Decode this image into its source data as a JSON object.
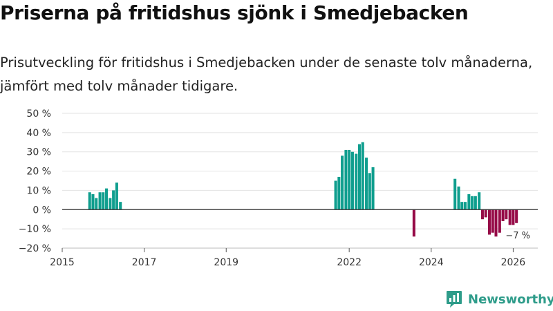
{
  "title": "Priserna på fritidshus sjönk i Smedjebacken",
  "subtitle": "Prisutveckling för fritidshus i Smedjebacken under de senaste tolv månaderna, jämfört med tolv månader tidigare.",
  "logo": {
    "text": "Newsworthy",
    "icon": "bar-chart-logo-icon"
  },
  "colors": {
    "positive": "#0f9e8e",
    "negative": "#960b47",
    "grid": "#e2e2e2",
    "zero": "#333333",
    "brand": "#2e9c8a"
  },
  "chart_data": {
    "type": "bar",
    "title": "Priserna på fritidshus sjönk i Smedjebacken",
    "xlabel": "",
    "ylabel": "",
    "ylim": [
      -20,
      50
    ],
    "yticks": [
      50,
      40,
      30,
      20,
      10,
      0,
      -10,
      -20
    ],
    "ytick_labels": [
      "50 %",
      "40 %",
      "30 %",
      "20 %",
      "10 %",
      "0 %",
      "−10 %",
      "−20 %"
    ],
    "xlim": [
      2015.0,
      2026.6
    ],
    "xticks": [
      2015,
      2017,
      2019,
      2022,
      2024,
      2026
    ],
    "xtick_labels": [
      "2015",
      "2017",
      "2019",
      "2022",
      "2024",
      "2026"
    ],
    "grid": true,
    "end_label": "−7 %",
    "series": [
      {
        "name": "Prisutveckling",
        "points": [
          {
            "x": 2015.67,
            "y": 9
          },
          {
            "x": 2015.75,
            "y": 8
          },
          {
            "x": 2015.83,
            "y": 6
          },
          {
            "x": 2015.92,
            "y": 9
          },
          {
            "x": 2016.0,
            "y": 9
          },
          {
            "x": 2016.08,
            "y": 11
          },
          {
            "x": 2016.17,
            "y": 6
          },
          {
            "x": 2016.25,
            "y": 10
          },
          {
            "x": 2016.33,
            "y": 14
          },
          {
            "x": 2016.42,
            "y": 4
          },
          {
            "x": 2021.67,
            "y": 15
          },
          {
            "x": 2021.75,
            "y": 17
          },
          {
            "x": 2021.83,
            "y": 28
          },
          {
            "x": 2021.92,
            "y": 31
          },
          {
            "x": 2022.0,
            "y": 31
          },
          {
            "x": 2022.08,
            "y": 30
          },
          {
            "x": 2022.17,
            "y": 29
          },
          {
            "x": 2022.25,
            "y": 34
          },
          {
            "x": 2022.33,
            "y": 35
          },
          {
            "x": 2022.42,
            "y": 27
          },
          {
            "x": 2022.5,
            "y": 19
          },
          {
            "x": 2022.58,
            "y": 22
          },
          {
            "x": 2023.58,
            "y": -14
          },
          {
            "x": 2024.58,
            "y": 16
          },
          {
            "x": 2024.67,
            "y": 12
          },
          {
            "x": 2024.75,
            "y": 4
          },
          {
            "x": 2024.83,
            "y": 4
          },
          {
            "x": 2024.92,
            "y": 8
          },
          {
            "x": 2025.0,
            "y": 7
          },
          {
            "x": 2025.08,
            "y": 7
          },
          {
            "x": 2025.17,
            "y": 9
          },
          {
            "x": 2025.25,
            "y": -5
          },
          {
            "x": 2025.33,
            "y": -4
          },
          {
            "x": 2025.42,
            "y": -13
          },
          {
            "x": 2025.5,
            "y": -12
          },
          {
            "x": 2025.58,
            "y": -14
          },
          {
            "x": 2025.67,
            "y": -12
          },
          {
            "x": 2025.75,
            "y": -6
          },
          {
            "x": 2025.83,
            "y": -5
          },
          {
            "x": 2025.92,
            "y": -8
          },
          {
            "x": 2026.0,
            "y": -8
          },
          {
            "x": 2026.08,
            "y": -7
          }
        ]
      }
    ]
  }
}
